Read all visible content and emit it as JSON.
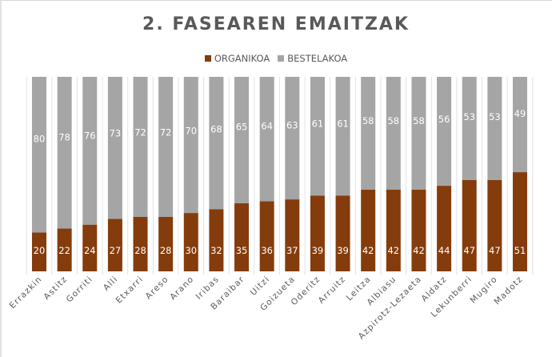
{
  "chart_data": {
    "type": "bar",
    "stacked": true,
    "percent_stacked": true,
    "title": "2. FASEAREN EMAITZAK",
    "xlabel": "",
    "ylabel": "",
    "ylim": [
      0,
      100
    ],
    "grid": "vertical",
    "legend_position": "top",
    "categories": [
      "Errazkin",
      "Astitz",
      "Gorriti",
      "Alli",
      "Etxarri",
      "Areso",
      "Arano",
      "Iribas",
      "Baraibar",
      "Uitzi",
      "Goizueta",
      "Oderitz",
      "Arruitz",
      "Leitza",
      "Albiasu",
      "Azpirotz-Lezaeta",
      "Aldatz",
      "Lekunberri",
      "Mugiro",
      "Madotz"
    ],
    "series": [
      {
        "name": "ORGANIKOA",
        "color": "#843c0c",
        "values": [
          20,
          22,
          24,
          27,
          28,
          28,
          30,
          32,
          35,
          36,
          37,
          39,
          39,
          42,
          42,
          42,
          44,
          47,
          47,
          51
        ]
      },
      {
        "name": "BESTELAKOA",
        "color": "#a5a5a5",
        "values": [
          80,
          78,
          76,
          73,
          72,
          72,
          70,
          68,
          65,
          64,
          63,
          61,
          61,
          58,
          58,
          58,
          56,
          53,
          53,
          49
        ]
      }
    ]
  }
}
